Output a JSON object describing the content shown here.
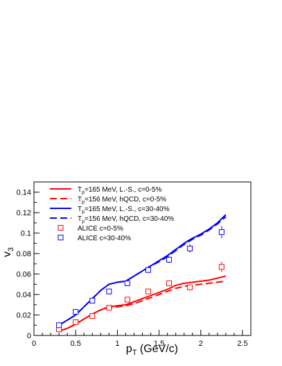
{
  "chart_data": {
    "type": "line",
    "xlabel_main": "p",
    "xlabel_sub": "T",
    "xlabel_unit": " (GeV/c)",
    "ylabel_main": "v",
    "ylabel_sub": "3",
    "xlim": [
      0,
      2.6
    ],
    "ylim": [
      0,
      0.15
    ],
    "x_ticks": [
      "0",
      "0.5",
      "1",
      "1.5",
      "2",
      "2.5"
    ],
    "y_ticks": [
      "0",
      "0.02",
      "0.04",
      "0.06",
      "0.08",
      "0.1",
      "0.12",
      "0.14"
    ],
    "x_tick_values": [
      0,
      0.5,
      1,
      1.5,
      2,
      2.5
    ],
    "y_tick_values": [
      0,
      0.02,
      0.04,
      0.06,
      0.08,
      0.1,
      0.12,
      0.14
    ],
    "legend_position": "top-left",
    "series": [
      {
        "legend_prefix": "T",
        "legend_sub": "p",
        "legend_suffix": "=165 MeV, L.-S., c=0-5%",
        "color": "#ff0000",
        "dash": "solid",
        "x": [
          0.3,
          0.4,
          0.5,
          0.6,
          0.7,
          0.8,
          0.9,
          1.0,
          1.1,
          1.2,
          1.3,
          1.4,
          1.5,
          1.6,
          1.7,
          1.8,
          1.9,
          2.0,
          2.1,
          2.2,
          2.3
        ],
        "y": [
          0.004,
          0.007,
          0.011,
          0.016,
          0.021,
          0.025,
          0.028,
          0.029,
          0.03,
          0.033,
          0.036,
          0.039,
          0.042,
          0.045,
          0.049,
          0.051,
          0.052,
          0.053,
          0.054,
          0.056,
          0.058
        ]
      },
      {
        "legend_prefix": "T",
        "legend_sub": "p",
        "legend_suffix": "=156 MeV, hQCD, c=0-5%",
        "color": "#ff0000",
        "dash": "dashed",
        "x": [
          0.3,
          0.4,
          0.5,
          0.6,
          0.7,
          0.8,
          0.9,
          1.0,
          1.1,
          1.2,
          1.3,
          1.4,
          1.5,
          1.6,
          1.7,
          1.8,
          1.9,
          2.0,
          2.1,
          2.2,
          2.3
        ],
        "y": [
          0.004,
          0.007,
          0.011,
          0.016,
          0.021,
          0.025,
          0.027,
          0.028,
          0.029,
          0.031,
          0.034,
          0.037,
          0.04,
          0.043,
          0.046,
          0.048,
          0.049,
          0.05,
          0.051,
          0.052,
          0.053
        ]
      },
      {
        "legend_prefix": "T",
        "legend_sub": "p",
        "legend_suffix": "=165 MeV, L.-S., c=30-40%",
        "color": "#0000ff",
        "dash": "solid",
        "x": [
          0.3,
          0.4,
          0.5,
          0.6,
          0.7,
          0.8,
          0.9,
          1.0,
          1.1,
          1.2,
          1.3,
          1.4,
          1.5,
          1.6,
          1.7,
          1.8,
          1.9,
          2.0,
          2.1,
          2.2,
          2.3
        ],
        "y": [
          0.01,
          0.015,
          0.02,
          0.028,
          0.036,
          0.044,
          0.05,
          0.052,
          0.053,
          0.058,
          0.063,
          0.068,
          0.073,
          0.078,
          0.084,
          0.09,
          0.095,
          0.099,
          0.104,
          0.11,
          0.118
        ]
      },
      {
        "legend_prefix": "T",
        "legend_sub": "p",
        "legend_suffix": "=156 MeV, hQCD, c=30-40%",
        "color": "#0000ff",
        "dash": "dashed",
        "x": [
          0.3,
          0.4,
          0.5,
          0.6,
          0.7,
          0.8,
          0.9,
          1.0,
          1.1,
          1.2,
          1.3,
          1.4,
          1.5,
          1.6,
          1.7,
          1.8,
          1.9,
          2.0,
          2.1,
          2.2,
          2.3
        ],
        "y": [
          0.01,
          0.015,
          0.02,
          0.028,
          0.036,
          0.044,
          0.05,
          0.052,
          0.053,
          0.058,
          0.063,
          0.068,
          0.072,
          0.077,
          0.083,
          0.089,
          0.094,
          0.098,
          0.103,
          0.109,
          0.116
        ]
      }
    ],
    "markers": [
      {
        "legend": "ALICE c=0-5%",
        "color": "#ff0000",
        "x": [
          0.3,
          0.5,
          0.7,
          0.9,
          1.12,
          1.37,
          1.62,
          1.87,
          2.25
        ],
        "y": [
          0.006,
          0.013,
          0.019,
          0.027,
          0.035,
          0.043,
          0.051,
          0.047,
          0.067
        ],
        "err": [
          0.0015,
          0.0015,
          0.0015,
          0.0015,
          0.0015,
          0.002,
          0.002,
          0.003,
          0.005
        ]
      },
      {
        "legend": "ALICE c=30-40%",
        "color": "#0000ff",
        "x": [
          0.3,
          0.5,
          0.7,
          0.9,
          1.12,
          1.37,
          1.62,
          1.87,
          2.25
        ],
        "y": [
          0.01,
          0.023,
          0.034,
          0.043,
          0.051,
          0.064,
          0.074,
          0.085,
          0.101
        ],
        "err": [
          0.0015,
          0.0015,
          0.0015,
          0.0015,
          0.002,
          0.003,
          0.003,
          0.004,
          0.006
        ]
      }
    ]
  }
}
